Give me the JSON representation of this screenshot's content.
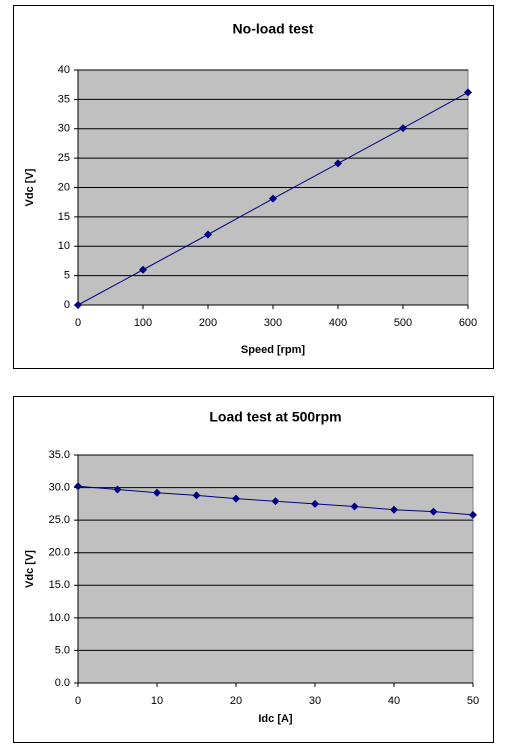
{
  "chart_data": [
    {
      "type": "line",
      "title": "No-load test",
      "x_label": "Speed [rpm]",
      "y_label": "Vdc [V]",
      "x": [
        0,
        100,
        200,
        300,
        400,
        500,
        600
      ],
      "values": [
        0,
        6,
        12,
        18.1,
        24.1,
        30.1,
        36.2
      ],
      "color": "#000080",
      "plot_background": "#c0c0c0",
      "grid": true,
      "xlim": [
        0,
        600
      ],
      "xticks": [
        0,
        100,
        200,
        300,
        400,
        500,
        600
      ],
      "ylim": [
        0,
        40
      ],
      "yticks": [
        0,
        5,
        10,
        15,
        20,
        25,
        30,
        35,
        40
      ]
    },
    {
      "type": "line",
      "title": "Load test at 500rpm",
      "x_label": "Idc [A]",
      "y_label": "Vdc [V]",
      "x": [
        0,
        5,
        10,
        15,
        20,
        25,
        30,
        35,
        40,
        45,
        50
      ],
      "values": [
        30.2,
        29.7,
        29.2,
        28.8,
        28.3,
        27.9,
        27.5,
        27.1,
        26.6,
        26.3,
        25.8
      ],
      "color": "#000080",
      "plot_background": "#c0c0c0",
      "grid": true,
      "xlim": [
        0,
        50
      ],
      "xticks": [
        0,
        10,
        20,
        30,
        40,
        50
      ],
      "ylim": [
        0,
        35
      ],
      "yticks": [
        {
          "value": 0,
          "label": "0.0"
        },
        {
          "value": 5,
          "label": "5.0"
        },
        {
          "value": 10,
          "label": "10.0"
        },
        {
          "value": 15,
          "label": "15.0"
        },
        {
          "value": 20,
          "label": "20.0"
        },
        {
          "value": 25,
          "label": "25.0"
        },
        {
          "value": 30,
          "label": "30.0"
        },
        {
          "value": 35,
          "label": "35.0"
        }
      ]
    }
  ]
}
